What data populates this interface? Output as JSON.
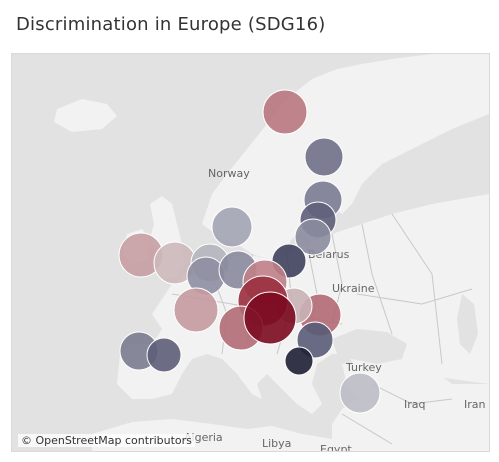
{
  "title": "Discrimination in Europe (SDG16)",
  "map": {
    "land_color": "#f2f2f2",
    "water_color": "#e2e2e2",
    "border_color": "#c8c8c8",
    "labels": {
      "norway": "Norway",
      "belarus": "Belarus",
      "ukraine": "Ukraine",
      "turkey": "Turkey",
      "iraq": "Iraq",
      "iran": "Iran",
      "algeria": "Algeria",
      "libya": "Libya",
      "egypt": "Egypt"
    },
    "attribution": "© OpenStreetMap contributors"
  },
  "color_scale": {
    "low": "#1c1c33",
    "mid": "#c8c8cc",
    "high": "#7a0a1e"
  },
  "markers": [
    {
      "id": "sweden",
      "color": "#b97880"
    },
    {
      "id": "finland",
      "color": "#6f7088"
    },
    {
      "id": "estonia",
      "color": "#7a7b92"
    },
    {
      "id": "latvia",
      "color": "#5e5f7a"
    },
    {
      "id": "lithuania",
      "color": "#8b8c9f"
    },
    {
      "id": "ireland",
      "color": "#c69ea4"
    },
    {
      "id": "united-kingdom",
      "color": "#cdb8bb"
    },
    {
      "id": "netherlands",
      "color": "#b5b5bf"
    },
    {
      "id": "belgium",
      "color": "#8d8ea1"
    },
    {
      "id": "denmark",
      "color": "#a3a4b3"
    },
    {
      "id": "germany",
      "color": "#8a8a9e"
    },
    {
      "id": "poland",
      "color": "#3f405c"
    },
    {
      "id": "france",
      "color": "#c49aa0"
    },
    {
      "id": "slovakia",
      "color": "#bf8088"
    },
    {
      "id": "romania",
      "color": "#b36a74"
    },
    {
      "id": "hungary",
      "color": "#c9b3b6"
    },
    {
      "id": "austria",
      "color": "#9a2e3e"
    },
    {
      "id": "italy",
      "color": "#b36c75"
    },
    {
      "id": "croatia",
      "color": "#7b0a1f"
    },
    {
      "id": "bulgaria",
      "color": "#5a5b77"
    },
    {
      "id": "greece",
      "color": "#1f1f35"
    },
    {
      "id": "portugal",
      "color": "#7a7b8f"
    },
    {
      "id": "spain",
      "color": "#5d5e78"
    },
    {
      "id": "cyprus",
      "color": "#bdbdc5"
    }
  ]
}
